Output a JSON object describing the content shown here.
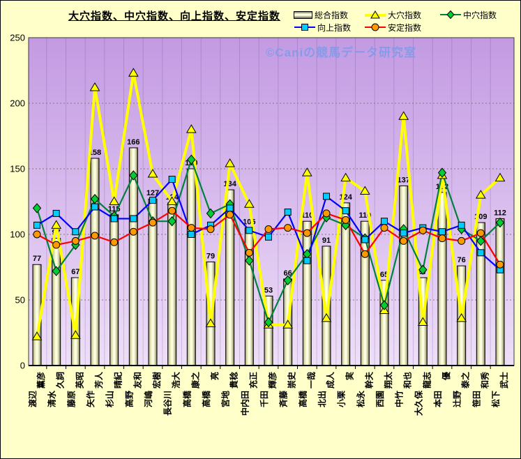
{
  "title": "大穴指数、中穴指数、向上指数、安定指数",
  "watermark": "©Caniの競馬データ研究室",
  "legend": [
    {
      "label": "総合指数",
      "type": "bar",
      "marker": "bar-swatch"
    },
    {
      "label": "大穴指数",
      "type": "line",
      "marker": "triangle"
    },
    {
      "label": "中穴指数",
      "type": "line",
      "marker": "diamond"
    },
    {
      "label": "向上指数",
      "type": "line",
      "marker": "square"
    },
    {
      "label": "安定指数",
      "type": "line",
      "marker": "circle"
    }
  ],
  "colors": {
    "background": "#FFFFC9",
    "plot_top": "#C39AE2",
    "plot_bottom": "#EEDFF8",
    "bar_light": "#FFFFE4",
    "bar_dark": "#5F5F48",
    "series_yellow": "#FFFF00",
    "series_green_line": "#00803C",
    "series_green_marker": "#00CC33",
    "series_blue_line": "#0000FF",
    "series_blue_marker": "#00CCFF",
    "series_red_line": "#FF0000",
    "series_red_marker": "#FF9900",
    "watermark_blue": "#7D9BEA",
    "gridline": "#7A7A7A"
  },
  "chart_data": {
    "type": "bar",
    "subtype": "bar+line combo",
    "title": "大穴指数、中穴指数、向上指数、安定指数",
    "ylim": [
      0,
      250
    ],
    "yticks": [
      0,
      50,
      100,
      150,
      200,
      250
    ],
    "grid": "horizontal dotted + vertical category lines",
    "legend_position": "top-right, two rows",
    "categories": [
      {
        "surname": "渡辺",
        "given": "薫彦"
      },
      {
        "surname": "清水",
        "given": "久詞"
      },
      {
        "surname": "藤原",
        "given": "英昭"
      },
      {
        "surname": "矢作",
        "given": "芳人"
      },
      {
        "surname": "杉山",
        "given": "晴紀"
      },
      {
        "surname": "高野",
        "given": "友和"
      },
      {
        "surname": "河嶋",
        "given": "宏樹"
      },
      {
        "surname": "長谷川",
        "given": "浩大"
      },
      {
        "surname": "高橋",
        "given": "康之"
      },
      {
        "surname": "高橋",
        "given": "亮"
      },
      {
        "surname": "宮地",
        "given": "貴稔"
      },
      {
        "surname": "中内田",
        "given": "充正"
      },
      {
        "surname": "千田",
        "given": "輝彦"
      },
      {
        "surname": "斉藤",
        "given": "崇史"
      },
      {
        "surname": "高橋",
        "given": "一哉"
      },
      {
        "surname": "北出",
        "given": "成人"
      },
      {
        "surname": "小栗",
        "given": "実"
      },
      {
        "surname": "松永",
        "given": "幹夫"
      },
      {
        "surname": "西園",
        "given": "翔太"
      },
      {
        "surname": "中竹",
        "given": "和也"
      },
      {
        "surname": "大久保",
        "given": "龍志"
      },
      {
        "surname": "本田",
        "given": "優"
      },
      {
        "surname": "辻野",
        "given": "泰之"
      },
      {
        "surname": "笹田",
        "given": "和秀"
      },
      {
        "surname": "松下",
        "given": "武士"
      }
    ],
    "series": [
      {
        "name": "総合指数",
        "type": "bar",
        "marker": "none",
        "data_labels": true,
        "values": [
          77,
          97,
          67,
          158,
          115,
          166,
          127,
          124,
          150,
          79,
          134,
          105,
          53,
          66,
          110,
          91,
          124,
          110,
          65,
          137,
          67,
          132,
          76,
          109,
          112
        ]
      },
      {
        "name": "大穴指数",
        "type": "line",
        "marker": "triangle",
        "line_color": "#FFFF00",
        "marker_fill": "#FFFF00",
        "values": [
          22,
          107,
          23,
          212,
          125,
          223,
          146,
          125,
          180,
          32,
          154,
          123,
          31,
          31,
          147,
          36,
          143,
          133,
          42,
          190,
          33,
          145,
          36,
          130,
          143
        ]
      },
      {
        "name": "中穴指数",
        "type": "line",
        "marker": "diamond",
        "line_color": "#00803C",
        "marker_fill": "#00CC33",
        "values": [
          120,
          72,
          92,
          127,
          114,
          145,
          110,
          110,
          157,
          116,
          123,
          80,
          33,
          65,
          85,
          113,
          107,
          97,
          46,
          104,
          73,
          147,
          104,
          95,
          109
        ]
      },
      {
        "name": "向上指数",
        "type": "line",
        "marker": "square",
        "line_color": "#0000FF",
        "marker_fill": "#00CCFF",
        "values": [
          107,
          116,
          102,
          121,
          112,
          112,
          126,
          142,
          100,
          107,
          120,
          103,
          98,
          117,
          80,
          129,
          118,
          96,
          110,
          101,
          105,
          102,
          107,
          86,
          73
        ]
      },
      {
        "name": "安定指数",
        "type": "line",
        "marker": "circle",
        "line_color": "#FF0000",
        "marker_fill": "#FF9900",
        "values": [
          100,
          92,
          95,
          99,
          94,
          102,
          109,
          118,
          105,
          104,
          115,
          86,
          104,
          105,
          101,
          116,
          111,
          85,
          105,
          95,
          103,
          97,
          95,
          101,
          77
        ]
      }
    ]
  }
}
